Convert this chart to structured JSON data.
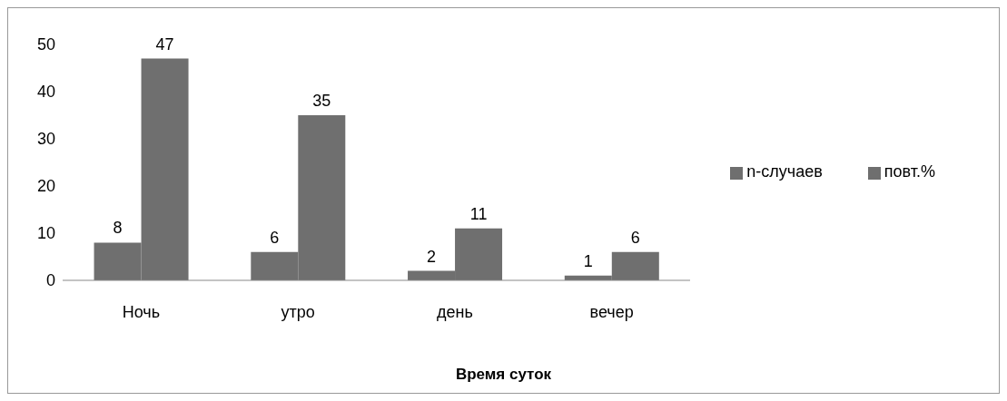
{
  "chart_data": {
    "type": "bar",
    "xlabel": "Время суток",
    "categories": [
      "Ночь",
      "утро",
      "день",
      "вечер"
    ],
    "series": [
      {
        "name": "n-случаев",
        "color": "#6f6f6f",
        "values": [
          8,
          6,
          2,
          1
        ]
      },
      {
        "name": "повт.%",
        "color": "#6f6f6f",
        "values": [
          47,
          35,
          11,
          6
        ]
      }
    ],
    "ylim": [
      0,
      50
    ],
    "yticks": [
      0,
      10,
      20,
      30,
      40,
      50
    ],
    "grid": false,
    "legend": "right",
    "data_labels": true
  }
}
